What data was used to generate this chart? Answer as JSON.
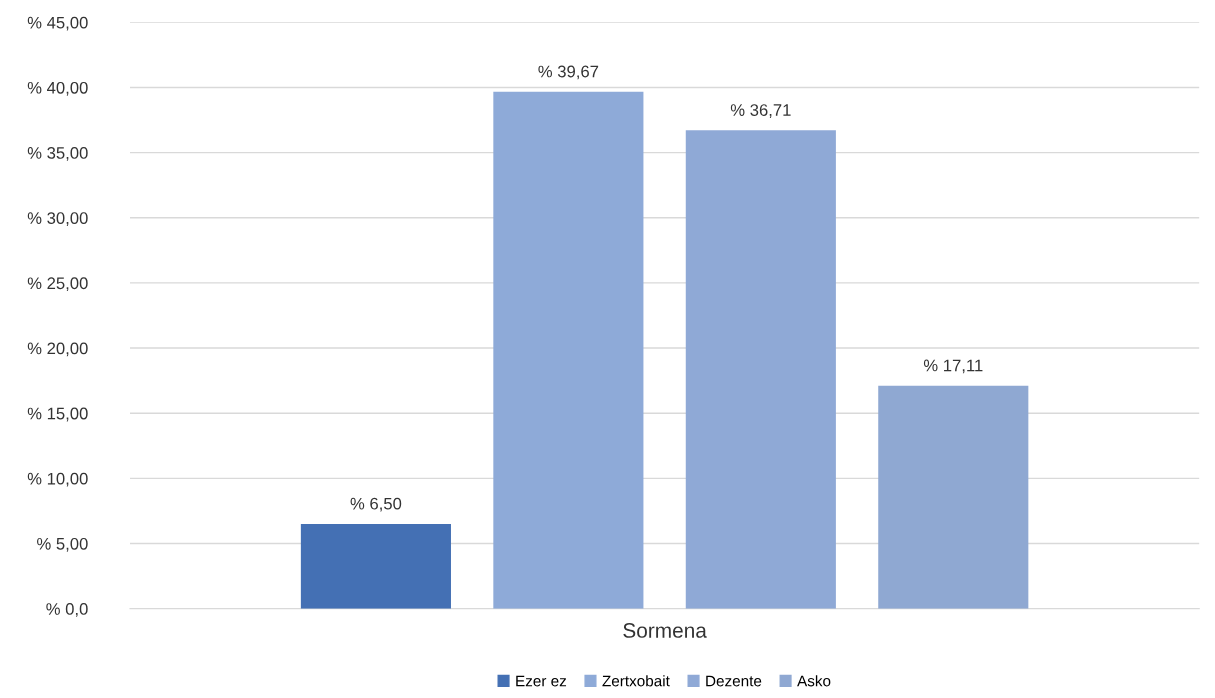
{
  "chart_data": {
    "type": "bar",
    "categories": [
      "Sormena"
    ],
    "series": [
      {
        "name": "Ezer ez",
        "color": "#4470b4",
        "values": [
          6.5
        ],
        "value_labels": [
          "% 6,50"
        ]
      },
      {
        "name": "Zertxobait",
        "color": "#8eaad8",
        "values": [
          39.67
        ],
        "value_labels": [
          "% 39,67"
        ]
      },
      {
        "name": "Dezente",
        "color": "#8fa9d6",
        "values": [
          36.71
        ],
        "value_labels": [
          "% 36,71"
        ]
      },
      {
        "name": "Asko",
        "color": "#8fa8d2",
        "values": [
          17.11
        ],
        "value_labels": [
          "% 17,11"
        ]
      }
    ],
    "ylim": [
      0,
      45
    ],
    "yticks": [
      {
        "value": 0,
        "label": "% 0,0"
      },
      {
        "value": 5,
        "label": "% 5,00"
      },
      {
        "value": 10,
        "label": "% 10,00"
      },
      {
        "value": 15,
        "label": "% 15,00"
      },
      {
        "value": 20,
        "label": "% 20,00"
      },
      {
        "value": 25,
        "label": "% 25,00"
      },
      {
        "value": 30,
        "label": "% 30,00"
      },
      {
        "value": 35,
        "label": "% 35,00"
      },
      {
        "value": 40,
        "label": "% 40,00"
      },
      {
        "value": 45,
        "label": "% 45,00"
      }
    ],
    "grid": "y",
    "legend": "bottom"
  }
}
